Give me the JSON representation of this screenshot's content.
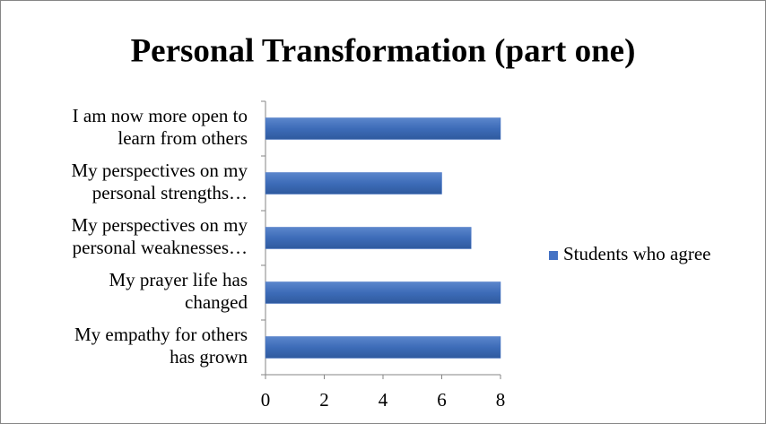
{
  "chart_data": {
    "type": "bar",
    "orientation": "horizontal",
    "title": "Personal Transformation (part one)",
    "categories": [
      "I am now more open to learn from others",
      "My perspectives on my personal strengths…",
      "My perspectives on my personal weaknesses…",
      "My prayer life has changed",
      "My empathy for others has grown"
    ],
    "series": [
      {
        "name": "Students who agree",
        "color": "#4472c4",
        "values": [
          8,
          6,
          7,
          8,
          8
        ]
      }
    ],
    "xlim": [
      0,
      8
    ],
    "xticks": [
      0,
      2,
      4,
      6,
      8
    ],
    "grid": false,
    "legend": "right"
  }
}
